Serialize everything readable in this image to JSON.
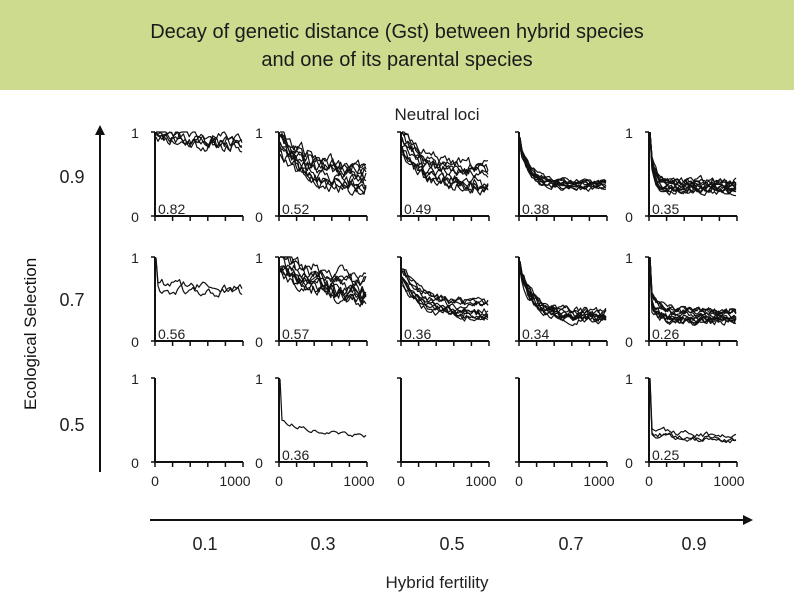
{
  "chart_data": {
    "type": "line",
    "title_lines": [
      "Decay of genetic distance (Gst) between hybrid species",
      "and one of its parental species"
    ],
    "panel_header": "Neutral loci",
    "xlabel": "Hybrid fertility",
    "ylabel": "Ecological Selection",
    "column_values": [
      "0.1",
      "0.3",
      "0.5",
      "0.7",
      "0.9"
    ],
    "row_values": [
      "0.9",
      "0.7",
      "0.5"
    ],
    "panel_x_ticks": [
      "0",
      "1000"
    ],
    "panel_y_ticks": [
      "0",
      "1"
    ],
    "panel_xlim": [
      0,
      1000
    ],
    "panel_ylim": [
      0,
      1
    ],
    "panels": [
      {
        "row": "0.9",
        "col": "0.1",
        "label": "0.82",
        "seed": 11,
        "lines": 5,
        "start": 1.0,
        "end": 0.85,
        "tau": 0.4,
        "noise": 0.06,
        "spread": 0.08,
        "drop": 0.0
      },
      {
        "row": "0.9",
        "col": "0.3",
        "label": "0.52",
        "seed": 23,
        "lines": 10,
        "start": 0.95,
        "end": 0.45,
        "tau": 0.35,
        "noise": 0.07,
        "spread": 0.2,
        "drop": 0.0
      },
      {
        "row": "0.9",
        "col": "0.5",
        "label": "0.49",
        "seed": 37,
        "lines": 10,
        "start": 0.9,
        "end": 0.45,
        "tau": 0.25,
        "noise": 0.06,
        "spread": 0.15,
        "drop": 0.0
      },
      {
        "row": "0.9",
        "col": "0.7",
        "label": "0.38",
        "seed": 41,
        "lines": 10,
        "start": 0.85,
        "end": 0.38,
        "tau": 0.12,
        "noise": 0.03,
        "spread": 0.05,
        "drop": 0.05
      },
      {
        "row": "0.9",
        "col": "0.9",
        "label": "0.35",
        "seed": 53,
        "lines": 12,
        "start": 0.8,
        "end": 0.35,
        "tau": 0.05,
        "noise": 0.04,
        "spread": 0.08,
        "drop": 0.25
      },
      {
        "row": "0.7",
        "col": "0.1",
        "label": "0.56",
        "seed": 61,
        "lines": 2,
        "start": 0.65,
        "end": 0.6,
        "tau": 0.5,
        "noise": 0.05,
        "spread": 0.08,
        "drop": 0.35
      },
      {
        "row": "0.7",
        "col": "0.3",
        "label": "0.57",
        "seed": 71,
        "lines": 10,
        "start": 0.95,
        "end": 0.6,
        "tau": 0.5,
        "noise": 0.07,
        "spread": 0.15,
        "drop": 0.0
      },
      {
        "row": "0.7",
        "col": "0.5",
        "label": "0.36",
        "seed": 83,
        "lines": 10,
        "start": 0.8,
        "end": 0.38,
        "tau": 0.25,
        "noise": 0.04,
        "spread": 0.12,
        "drop": 0.0
      },
      {
        "row": "0.7",
        "col": "0.7",
        "label": "0.34",
        "seed": 97,
        "lines": 10,
        "start": 0.85,
        "end": 0.3,
        "tau": 0.15,
        "noise": 0.04,
        "spread": 0.08,
        "drop": 0.05
      },
      {
        "row": "0.7",
        "col": "0.9",
        "label": "0.26",
        "seed": 103,
        "lines": 12,
        "start": 0.5,
        "end": 0.3,
        "tau": 0.1,
        "noise": 0.04,
        "spread": 0.08,
        "drop": 0.45
      },
      {
        "row": "0.5",
        "col": "0.1",
        "label": "",
        "seed": 0,
        "lines": 0,
        "start": 0,
        "end": 0,
        "tau": 1,
        "noise": 0,
        "spread": 0,
        "drop": 0
      },
      {
        "row": "0.5",
        "col": "0.3",
        "label": "0.36",
        "seed": 113,
        "lines": 1,
        "start": 0.5,
        "end": 0.28,
        "tau": 0.5,
        "noise": 0.02,
        "spread": 0.0,
        "drop": 0.5
      },
      {
        "row": "0.5",
        "col": "0.5",
        "label": "",
        "seed": 0,
        "lines": 0,
        "start": 0,
        "end": 0,
        "tau": 1,
        "noise": 0,
        "spread": 0,
        "drop": 0
      },
      {
        "row": "0.5",
        "col": "0.7",
        "label": "",
        "seed": 0,
        "lines": 0,
        "start": 0,
        "end": 0,
        "tau": 1,
        "noise": 0,
        "spread": 0,
        "drop": 0
      },
      {
        "row": "0.5",
        "col": "0.9",
        "label": "0.25",
        "seed": 127,
        "lines": 3,
        "start": 0.38,
        "end": 0.3,
        "tau": 0.3,
        "noise": 0.03,
        "spread": 0.06,
        "drop": 0.6
      }
    ]
  }
}
